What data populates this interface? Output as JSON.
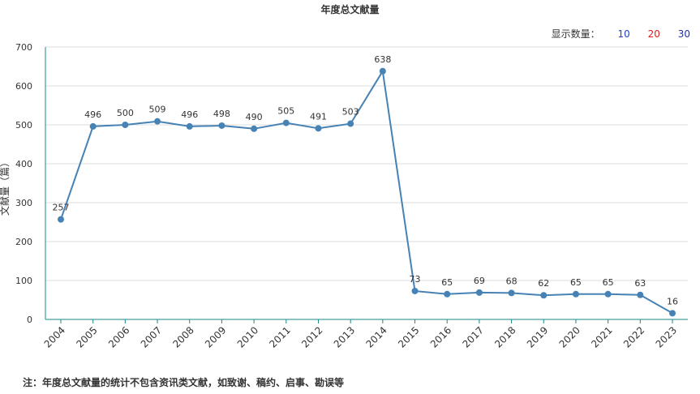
{
  "chart_data": {
    "type": "line",
    "title": "年度总文献量",
    "ylabel": "文献量（篇）",
    "xlabel": "",
    "ylim": [
      0,
      700
    ],
    "yticks": [
      0,
      100,
      200,
      300,
      400,
      500,
      600,
      700
    ],
    "categories": [
      "2004",
      "2005",
      "2006",
      "2007",
      "2008",
      "2009",
      "2010",
      "2011",
      "2012",
      "2013",
      "2014",
      "2015",
      "2016",
      "2017",
      "2018",
      "2019",
      "2020",
      "2021",
      "2022",
      "2023"
    ],
    "values": [
      257,
      496,
      500,
      509,
      496,
      498,
      490,
      505,
      491,
      503,
      638,
      73,
      65,
      69,
      68,
      62,
      65,
      65,
      63,
      16
    ],
    "grid": true,
    "line_color": "#4682b4",
    "axis_color": "#1a8a8a"
  },
  "controls": {
    "display_label": "显示数量：",
    "options": [
      "10",
      "20",
      "30"
    ]
  },
  "footnote": "注：年度总文献量的统计不包含资讯类文献，如致谢、稿约、启事、勘误等"
}
